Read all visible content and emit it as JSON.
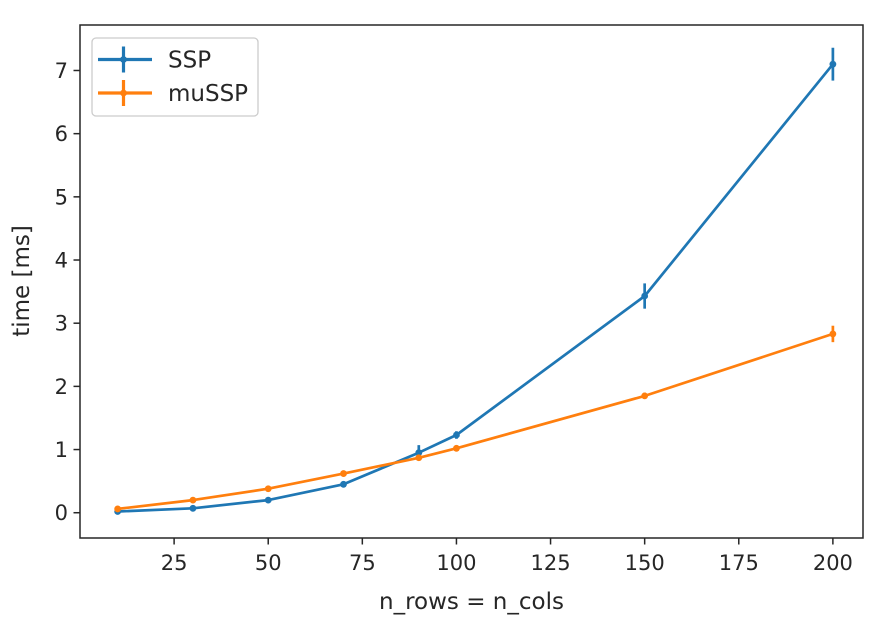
{
  "chart_data": {
    "type": "line",
    "title": "",
    "xlabel": "n_rows = n_cols",
    "ylabel": "time [ms]",
    "xlim": [
      0,
      208
    ],
    "ylim": [
      -0.4,
      7.72
    ],
    "xticks": [
      25,
      50,
      75,
      100,
      125,
      150,
      175,
      200
    ],
    "yticks": [
      0,
      1,
      2,
      3,
      4,
      5,
      6,
      7
    ],
    "grid": false,
    "legend_position": "upper-left",
    "x": [
      10,
      30,
      50,
      70,
      90,
      100,
      150,
      200
    ],
    "series": [
      {
        "name": "SSP",
        "color": "#1f77b4",
        "values": [
          0.02,
          0.07,
          0.2,
          0.45,
          0.95,
          1.23,
          3.43,
          7.1
        ],
        "yerr": [
          0.02,
          0.02,
          0.03,
          0.04,
          0.12,
          0.06,
          0.2,
          0.26
        ]
      },
      {
        "name": "muSSP",
        "color": "#ff7f0e",
        "values": [
          0.06,
          0.2,
          0.38,
          0.62,
          0.87,
          1.02,
          1.85,
          2.83
        ],
        "yerr": [
          0.01,
          0.02,
          0.02,
          0.03,
          0.04,
          0.04,
          0.05,
          0.13
        ]
      }
    ]
  },
  "style": {
    "text_color": "#262626",
    "spine_color": "#262626",
    "background_color": "#ffffff",
    "legend_border_color": "#cccccc",
    "legend_background": "#ffffff"
  }
}
